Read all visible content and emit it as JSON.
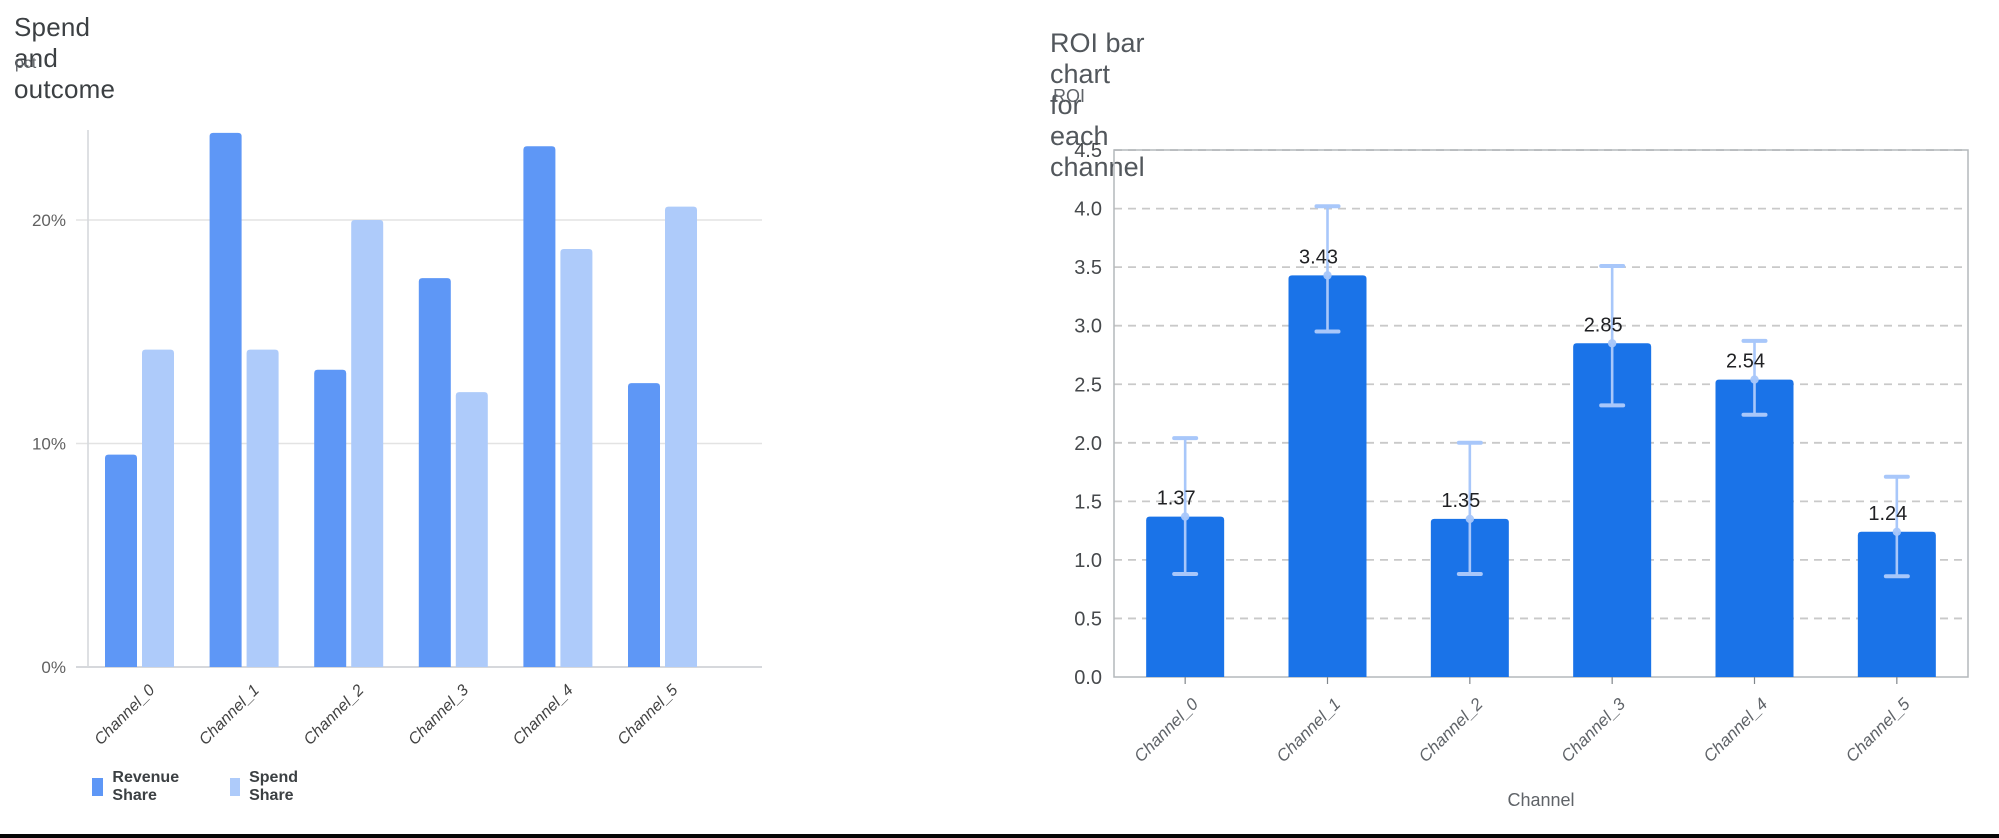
{
  "page": {
    "background": "#ffffff",
    "bottom_border_color": "#050505"
  },
  "chart_data": [
    {
      "type": "bar",
      "title": "Spend and outcome",
      "ylabel": "pct",
      "xlabel": "",
      "categories": [
        "Channel_0",
        "Channel_1",
        "Channel_2",
        "Channel_3",
        "Channel_4",
        "Channel_5"
      ],
      "series": [
        {
          "name": "Revenue Share",
          "color": "#5e97f6",
          "values": [
            9.5,
            23.9,
            13.3,
            17.4,
            23.3,
            12.7
          ]
        },
        {
          "name": "Spend Share",
          "color": "#aecbfa",
          "values": [
            14.2,
            14.2,
            20.0,
            12.3,
            18.7,
            20.6
          ]
        }
      ],
      "y_ticks": [
        0,
        10,
        20
      ],
      "y_tick_labels": [
        "0%",
        "10%",
        "20%"
      ],
      "ylim": [
        0,
        25.2
      ],
      "grid": true,
      "legend_position": "bottom",
      "colors": {
        "gridline": "#e3e3e3",
        "baseline": "#c9ccd0",
        "axis_line": "#d6d9dc",
        "tick_text": "#616161",
        "category_text": "#424242"
      }
    },
    {
      "type": "bar",
      "title": "ROI bar chart for each channel",
      "ylabel": "ROI",
      "xlabel": "Channel",
      "categories": [
        "Channel_0",
        "Channel_1",
        "Channel_2",
        "Channel_3",
        "Channel_4",
        "Channel_5"
      ],
      "values": [
        1.37,
        3.43,
        1.35,
        2.85,
        2.54,
        1.24
      ],
      "value_labels": [
        "1.37",
        "3.43",
        "1.35",
        "2.85",
        "2.54",
        "1.24"
      ],
      "error_low": [
        0.88,
        2.95,
        0.88,
        2.32,
        2.24,
        0.86
      ],
      "error_high": [
        2.04,
        4.02,
        2.0,
        3.51,
        2.87,
        1.71
      ],
      "y_ticks": [
        0.0,
        0.5,
        1.0,
        1.5,
        2.0,
        2.5,
        3.0,
        3.5,
        4.0,
        4.5
      ],
      "y_tick_labels": [
        "0.0",
        "0.5",
        "1.0",
        "1.5",
        "2.0",
        "2.5",
        "3.0",
        "3.5",
        "4.0",
        "4.5"
      ],
      "ylim": [
        0,
        4.5
      ],
      "grid": true,
      "grid_style": "dashed",
      "legend_position": "none",
      "colors": {
        "bar": "#1a73e8",
        "error_bar": "#a8c7fa",
        "gridline": "#c9c9c9",
        "border": "#b4b8bc",
        "tick_text": "#46494c",
        "category_text": "#5f6368",
        "value_text": "#202124"
      }
    }
  ]
}
